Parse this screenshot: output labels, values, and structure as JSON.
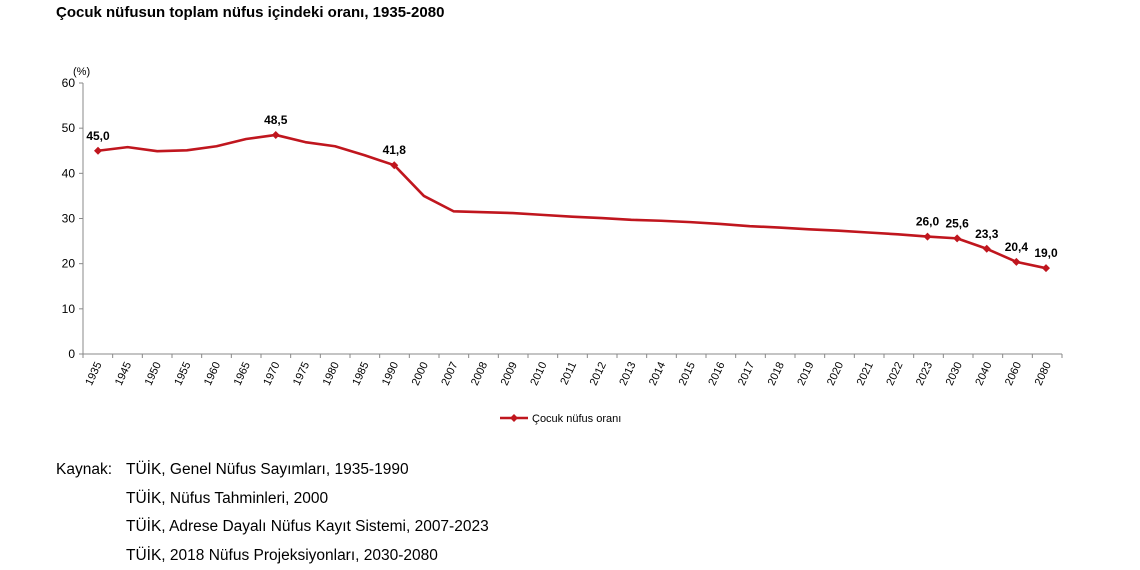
{
  "chart_data": {
    "type": "line",
    "title": "Çocuk nüfusun toplam nüfus içindeki oranı, 1935-2080",
    "ylabel": "(%)",
    "ylim": [
      0,
      60
    ],
    "yticks": [
      0,
      10,
      20,
      30,
      40,
      50,
      60
    ],
    "categories": [
      "1935",
      "1945",
      "1950",
      "1955",
      "1960",
      "1965",
      "1970",
      "1975",
      "1980",
      "1985",
      "1990",
      "2000",
      "2007",
      "2008",
      "2009",
      "2010",
      "2011",
      "2012",
      "2013",
      "2014",
      "2015",
      "2016",
      "2017",
      "2018",
      "2019",
      "2020",
      "2021",
      "2022",
      "2023",
      "2030",
      "2040",
      "2060",
      "2080"
    ],
    "series": [
      {
        "name": "Çocuk nüfus oranı",
        "color": "#c0161e",
        "values": [
          45.0,
          45.8,
          44.9,
          45.1,
          46.0,
          47.6,
          48.5,
          46.9,
          46.0,
          44.0,
          41.8,
          35.0,
          31.6,
          31.4,
          31.2,
          30.8,
          30.4,
          30.1,
          29.7,
          29.5,
          29.2,
          28.8,
          28.3,
          28.0,
          27.6,
          27.3,
          26.9,
          26.5,
          26.0,
          25.6,
          23.3,
          20.4,
          19.0
        ]
      }
    ],
    "data_labels": {
      "1935": "45,0",
      "1970": "48,5",
      "1990": "41,8",
      "2023": "26,0",
      "2030": "25,6",
      "2040": "23,3",
      "2060": "20,4",
      "2080": "19,0"
    },
    "markers": [
      "1935",
      "1970",
      "1990",
      "2023",
      "2030",
      "2040",
      "2060",
      "2080"
    ],
    "legend": "bottom",
    "grid": false
  },
  "source": {
    "label": "Kaynak:",
    "lines": [
      "TÜİK, Genel Nüfus Sayımları, 1935-1990",
      "TÜİK, Nüfus Tahminleri, 2000",
      "TÜİK, Adrese Dayalı Nüfus Kayıt Sistemi, 2007-2023",
      "TÜİK, 2018 Nüfus Projeksiyonları, 2030-2080"
    ]
  }
}
